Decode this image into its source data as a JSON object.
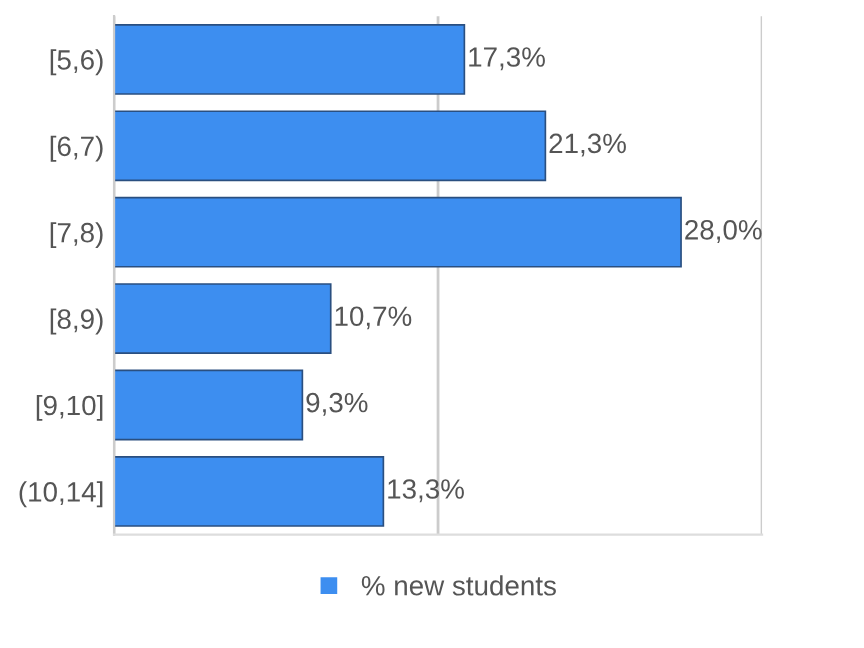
{
  "chart_data": {
    "type": "bar",
    "orientation": "horizontal",
    "categories": [
      "[5,6)",
      "[6,7)",
      "[7,8)",
      "[8,9)",
      "[9,10]",
      "(10,14]"
    ],
    "series": [
      {
        "name": "% new students",
        "color": "#3d8ef0",
        "values": [
          17.3,
          21.3,
          28.0,
          10.7,
          9.3,
          13.3
        ],
        "value_labels": [
          "17,3%",
          "21,3%",
          "28,0%",
          "10,7%",
          "9,3%",
          "13,3%"
        ]
      }
    ],
    "xlim": [
      0,
      32
    ],
    "xticks": [
      {
        "value": 0,
        "label": null
      },
      {
        "value": 16,
        "label": null
      },
      {
        "value": 32,
        "label": null
      }
    ],
    "tick_labels": "y",
    "grid": "x",
    "legend": "bottom"
  }
}
